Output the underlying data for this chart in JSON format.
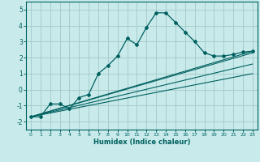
{
  "title": "",
  "xlabel": "Humidex (Indice chaleur)",
  "background_color": "#c8eaea",
  "grid_color": "#a8cccc",
  "line_color": "#006060",
  "xlim": [
    -0.5,
    23.5
  ],
  "ylim": [
    -2.5,
    5.5
  ],
  "xticks": [
    0,
    1,
    2,
    3,
    4,
    5,
    6,
    7,
    8,
    9,
    10,
    11,
    12,
    13,
    14,
    15,
    16,
    17,
    18,
    19,
    20,
    21,
    22,
    23
  ],
  "yticks": [
    -2,
    -1,
    0,
    1,
    2,
    3,
    4,
    5
  ],
  "curve_x": [
    0,
    1,
    2,
    3,
    4,
    5,
    6,
    7,
    8,
    9,
    10,
    11,
    12,
    13,
    14,
    15,
    16,
    17,
    18,
    19,
    20,
    21,
    22,
    23
  ],
  "curve_y": [
    -1.7,
    -1.7,
    -0.9,
    -0.9,
    -1.2,
    -0.5,
    -0.3,
    1.0,
    1.5,
    2.1,
    3.2,
    2.8,
    3.9,
    4.8,
    4.8,
    4.2,
    3.6,
    3.0,
    2.3,
    2.1,
    2.1,
    2.2,
    2.35,
    2.4
  ],
  "line2_x": [
    0,
    23
  ],
  "line2_y": [
    -1.7,
    2.4
  ],
  "line3_x": [
    0,
    23
  ],
  "line3_y": [
    -1.7,
    2.3
  ],
  "line4_x": [
    0,
    23
  ],
  "line4_y": [
    -1.7,
    1.6
  ],
  "line5_x": [
    0,
    23
  ],
  "line5_y": [
    -1.7,
    1.0
  ]
}
